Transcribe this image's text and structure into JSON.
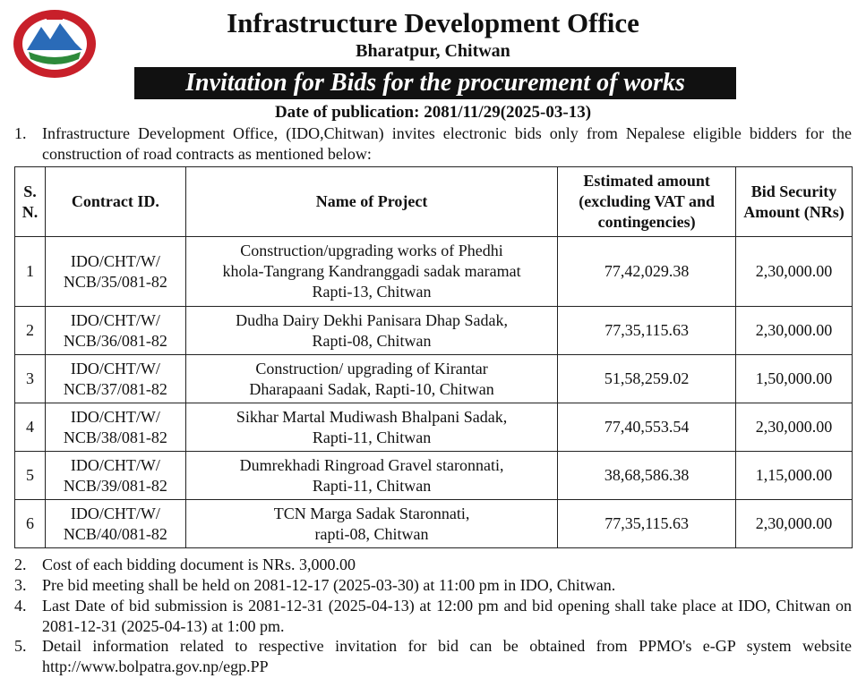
{
  "header": {
    "title": "Infrastructure Development Office",
    "subtitle": "Bharatpur, Chitwan",
    "banner": "Invitation for Bids for the procurement of works",
    "date": "Date of publication: 2081/11/29(2025-03-13)"
  },
  "intro": {
    "number": "1.",
    "text": "Infrastructure Development Office, (IDO,Chitwan) invites electronic bids only from Nepalese eligible bidders for the construction of road contracts as mentioned below:"
  },
  "table": {
    "columns": [
      "S. N.",
      "Contract ID.",
      "Name of Project",
      "Estimated amount (excluding VAT and contingencies)",
      "Bid Security Amount (NRs)"
    ],
    "rows": [
      [
        "1",
        "IDO/CHT/W/\nNCB/35/081-82",
        "Construction/upgrading works  of Phedhi\nkhola-Tangrang Kandranggadi sadak maramat\nRapti-13, Chitwan",
        "77,42,029.38",
        "2,30,000.00"
      ],
      [
        "2",
        "IDO/CHT/W/\nNCB/36/081-82",
        "Dudha Dairy Dekhi Panisara Dhap Sadak,\nRapti-08, Chitwan",
        "77,35,115.63",
        "2,30,000.00"
      ],
      [
        "3",
        "IDO/CHT/W/\nNCB/37/081-82",
        "Construction/ upgrading of Kirantar\nDharapaani Sadak, Rapti-10, Chitwan",
        "51,58,259.02",
        "1,50,000.00"
      ],
      [
        "4",
        "IDO/CHT/W/\nNCB/38/081-82",
        "Sikhar Martal Mudiwash Bhalpani Sadak,\nRapti-11, Chitwan",
        "77,40,553.54",
        "2,30,000.00"
      ],
      [
        "5",
        "IDO/CHT/W/\nNCB/39/081-82",
        "Dumrekhadi Ringroad Gravel staronnati,\nRapti-11, Chitwan",
        "38,68,586.38",
        "1,15,000.00"
      ],
      [
        "6",
        "IDO/CHT/W/\nNCB/40/081-82",
        "TCN Marga Sadak Staronnati,\nrapti-08, Chitwan",
        "77,35,115.63",
        "2,30,000.00"
      ]
    ]
  },
  "notes": [
    {
      "number": "2.",
      "text": "Cost of each bidding document is NRs. 3,000.00"
    },
    {
      "number": "3.",
      "text": "Pre bid meeting shall be held on 2081-12-17 (2025-03-30) at 11:00 pm in IDO, Chitwan."
    },
    {
      "number": "4.",
      "text": "Last Date of bid submission is 2081-12-31 (2025-04-13) at 12:00 pm and bid opening shall take place at IDO, Chitwan on 2081-12-31 (2025-04-13) at 1:00 pm."
    },
    {
      "number": "5.",
      "text": "Detail information related to respective invitation for bid can be obtained from PPMO's e-GP system website http://www.bolpatra.gov.np/egp.PP"
    }
  ]
}
